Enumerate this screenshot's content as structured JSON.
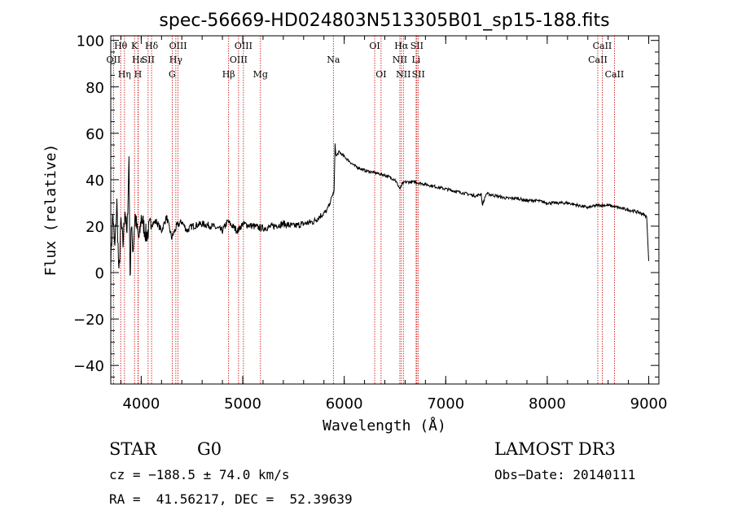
{
  "chart_data": {
    "type": "line",
    "title": "spec-56669-HD024803N513305B01_sp15-188.fits",
    "xlabel": "Wavelength (Å)",
    "ylabel": "Flux (relative)",
    "xlim": [
      3700,
      9100
    ],
    "ylim": [
      -48,
      102
    ],
    "x_ticks": [
      4000,
      5000,
      6000,
      7000,
      8000,
      9000
    ],
    "y_ticks": [
      -40,
      -20,
      0,
      20,
      40,
      60,
      80,
      100
    ],
    "x_tick_labels": [
      "4000",
      "5000",
      "6000",
      "7000",
      "8000",
      "9000"
    ],
    "y_tick_labels": [
      "−40",
      "−20",
      "0",
      "20",
      "40",
      "60",
      "80",
      "100"
    ],
    "series": [
      {
        "name": "flux",
        "color": "#000000",
        "x": [
          3700,
          3720,
          3740,
          3760,
          3780,
          3800,
          3820,
          3840,
          3860,
          3880,
          3890,
          3900,
          3920,
          3940,
          3960,
          3980,
          4000,
          4050,
          4100,
          4150,
          4200,
          4250,
          4300,
          4350,
          4400,
          4450,
          4500,
          4600,
          4700,
          4800,
          4850,
          4900,
          4950,
          5000,
          5100,
          5200,
          5300,
          5400,
          5500,
          5600,
          5700,
          5780,
          5820,
          5860,
          5880,
          5900,
          5910,
          5920,
          5950,
          6000,
          6050,
          6100,
          6200,
          6300,
          6400,
          6500,
          6550,
          6570,
          6600,
          6700,
          6800,
          6900,
          7000,
          7100,
          7200,
          7300,
          7350,
          7360,
          7400,
          7500,
          7600,
          7700,
          7800,
          7900,
          8000,
          8100,
          8200,
          8300,
          8400,
          8500,
          8600,
          8700,
          8800,
          8900,
          8950,
          8980,
          9000
        ],
        "y": [
          5,
          25,
          10,
          30,
          -2,
          22,
          12,
          28,
          15,
          50,
          -5,
          20,
          10,
          25,
          18,
          14,
          24,
          16,
          21,
          22,
          18,
          24,
          15,
          20,
          22,
          18,
          20,
          21,
          20,
          18,
          22,
          20,
          18,
          21,
          20,
          19,
          20,
          21,
          20,
          21,
          22,
          25,
          26,
          30,
          33,
          35,
          55,
          50,
          52,
          50,
          48,
          46,
          44,
          43,
          42,
          40,
          36,
          38,
          39,
          39,
          38,
          37,
          36,
          35,
          34,
          33,
          34,
          29,
          34,
          33,
          32,
          32,
          31,
          31,
          30,
          30,
          30,
          29,
          28,
          29,
          29,
          28,
          27,
          26,
          25,
          24,
          5
        ]
      }
    ],
    "line_color": "#cc0000",
    "lines": [
      {
        "name": "OII",
        "wave": 3727,
        "label": "OII",
        "row": 2
      },
      {
        "name": "H-theta",
        "wave": 3798,
        "label": "Hθ",
        "row": 1
      },
      {
        "name": "H-eta",
        "wave": 3835,
        "label": "Hη",
        "row": 3
      },
      {
        "name": "CaII-K",
        "wave": 3934,
        "label": "K",
        "row": 1
      },
      {
        "name": "H-epsilon",
        "wave": 3970,
        "label": "Hε",
        "row": 2
      },
      {
        "name": "CaII-H",
        "wave": 3968,
        "label": "H",
        "row": 3
      },
      {
        "name": "SII-4068",
        "wave": 4068,
        "label": "SII",
        "row": 2
      },
      {
        "name": "H-delta",
        "wave": 4102,
        "label": "Hδ",
        "row": 1
      },
      {
        "name": "G-band",
        "wave": 4305,
        "label": "G",
        "row": 3
      },
      {
        "name": "H-gamma",
        "wave": 4341,
        "label": "Hγ",
        "row": 2
      },
      {
        "name": "OIII-4363",
        "wave": 4363,
        "label": "OIII",
        "row": 1
      },
      {
        "name": "H-beta",
        "wave": 4861,
        "label": "Hβ",
        "row": 3
      },
      {
        "name": "OIII-4959",
        "wave": 4959,
        "label": "OIII",
        "row": 2
      },
      {
        "name": "OIII-5007",
        "wave": 5007,
        "label": "OIII",
        "row": 1
      },
      {
        "name": "Mg",
        "wave": 5175,
        "label": "Mg",
        "row": 3
      },
      {
        "name": "Na",
        "wave": 5893,
        "label": "Na",
        "row": 2
      },
      {
        "name": "OI-6300",
        "wave": 6300,
        "label": "OI",
        "row": 1
      },
      {
        "name": "OI-6363",
        "wave": 6363,
        "label": "OI",
        "row": 3
      },
      {
        "name": "NII-6548",
        "wave": 6548,
        "label": "NII",
        "row": 2
      },
      {
        "name": "H-alpha",
        "wave": 6563,
        "label": "Hα",
        "row": 1
      },
      {
        "name": "NII-6583",
        "wave": 6583,
        "label": "NII",
        "row": 3
      },
      {
        "name": "Li",
        "wave": 6708,
        "label": "Li",
        "row": 2
      },
      {
        "name": "SII-6716",
        "wave": 6716,
        "label": "SII",
        "row": 1
      },
      {
        "name": "SII-6731",
        "wave": 6731,
        "label": "SII",
        "row": 3
      },
      {
        "name": "CaII-8498",
        "wave": 8498,
        "label": "CaII",
        "row": 2
      },
      {
        "name": "CaII-8542",
        "wave": 8542,
        "label": "CaII",
        "row": 1
      },
      {
        "name": "CaII-8662",
        "wave": 8662,
        "label": "CaII",
        "row": 3
      }
    ],
    "grid": false,
    "legend": "none"
  },
  "info": {
    "class": "STAR",
    "subclass": "G0",
    "survey": "LAMOST DR3",
    "cz": "cz = −188.5 ± 74.0 km/s",
    "obs_date": "Obs−Date: 20140111",
    "coords": "RA =  41.56217, DEC =  52.39639"
  }
}
